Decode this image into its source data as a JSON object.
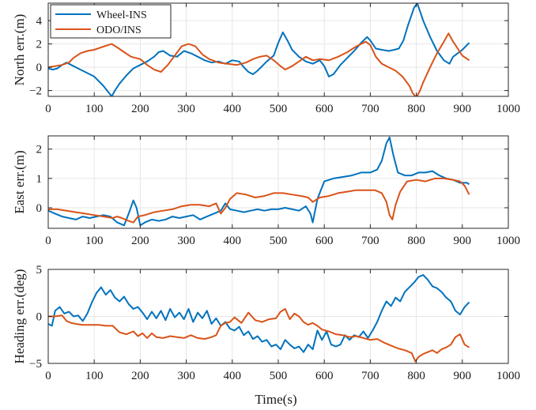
{
  "colors": {
    "wheel_ins": "#0072BD",
    "odo_ins": "#D95319",
    "grid": "#e6e6e6",
    "axis": "#262626"
  },
  "legend": {
    "placement": "top-left",
    "entries": [
      "Wheel-INS",
      "ODO/INS"
    ]
  },
  "xlabel": "Time(s)",
  "chart_data": [
    {
      "type": "line",
      "ylabel": "North err.(m)",
      "xlim": [
        0,
        1000
      ],
      "ylim": [
        -2.5,
        5.5
      ],
      "xticks": [
        0,
        100,
        200,
        300,
        400,
        500,
        600,
        700,
        800,
        900,
        1000
      ],
      "yticks": [
        -2,
        0,
        2,
        4
      ],
      "grid": true,
      "series": [
        {
          "name": "Wheel-INS",
          "x": [
            0,
            10,
            20,
            30,
            40,
            55,
            70,
            85,
            100,
            110,
            120,
            130,
            138,
            145,
            155,
            170,
            185,
            200,
            215,
            230,
            240,
            250,
            265,
            280,
            295,
            310,
            325,
            340,
            355,
            370,
            385,
            400,
            415,
            425,
            435,
            445,
            455,
            465,
            475,
            490,
            500,
            510,
            520,
            530,
            545,
            560,
            575,
            590,
            600,
            610,
            620,
            635,
            650,
            665,
            680,
            693,
            700,
            712,
            725,
            740,
            752,
            762,
            772,
            782,
            795,
            802,
            815,
            830,
            845,
            860,
            872,
            880,
            890,
            900,
            915
          ],
          "y": [
            -0.1,
            -0.2,
            -0.1,
            0.2,
            0.4,
            0.1,
            -0.2,
            -0.5,
            -0.8,
            -1.2,
            -1.6,
            -2.1,
            -2.5,
            -2.0,
            -1.4,
            -0.7,
            -0.1,
            0.2,
            0.5,
            0.9,
            1.3,
            1.4,
            1.0,
            0.9,
            1.4,
            1.2,
            0.9,
            0.6,
            0.4,
            0.5,
            0.3,
            0.6,
            0.5,
            0.0,
            -0.4,
            -0.6,
            -0.3,
            0.1,
            0.5,
            1.0,
            2.1,
            3.0,
            2.3,
            1.5,
            0.9,
            0.5,
            0.3,
            0.6,
            0.1,
            -0.8,
            -0.6,
            0.2,
            0.8,
            1.4,
            2.1,
            2.6,
            2.3,
            1.6,
            1.5,
            1.4,
            1.5,
            1.6,
            2.3,
            3.6,
            5.1,
            5.5,
            4.0,
            2.6,
            1.4,
            0.6,
            0.3,
            0.9,
            1.2,
            1.5,
            2.1
          ]
        },
        {
          "name": "ODO/INS",
          "x": [
            0,
            15,
            30,
            45,
            55,
            70,
            85,
            100,
            115,
            130,
            138,
            150,
            165,
            180,
            200,
            215,
            230,
            245,
            260,
            275,
            290,
            305,
            320,
            335,
            350,
            370,
            390,
            410,
            430,
            445,
            460,
            475,
            490,
            505,
            515,
            530,
            545,
            560,
            575,
            590,
            610,
            630,
            650,
            670,
            690,
            700,
            712,
            725,
            740,
            755,
            770,
            785,
            792,
            800,
            808,
            815,
            830,
            845,
            860,
            870,
            880,
            890,
            900,
            915
          ],
          "y": [
            0,
            0.1,
            0.2,
            0.4,
            0.8,
            1.2,
            1.4,
            1.5,
            1.7,
            1.9,
            2.0,
            1.7,
            1.3,
            0.9,
            0.7,
            0.2,
            -0.2,
            -0.4,
            0.2,
            1.0,
            1.8,
            2.0,
            1.8,
            1.1,
            0.7,
            0.4,
            0.3,
            0.2,
            0.4,
            0.7,
            0.9,
            1.0,
            0.6,
            0.1,
            -0.2,
            0.1,
            0.5,
            0.9,
            0.6,
            0.7,
            0.6,
            0.9,
            1.3,
            1.8,
            2.2,
            1.9,
            0.9,
            0.3,
            0.0,
            -0.3,
            -0.8,
            -1.6,
            -2.2,
            -2.6,
            -2.0,
            -1.3,
            0.0,
            1.2,
            2.2,
            2.9,
            2.2,
            1.6,
            1.0,
            0.6
          ]
        }
      ]
    },
    {
      "type": "line",
      "ylabel": "East err.(m)",
      "xlim": [
        0,
        1000
      ],
      "ylim": [
        -0.7,
        2.45
      ],
      "xticks": [
        0,
        100,
        200,
        300,
        400,
        500,
        600,
        700,
        800,
        900,
        1000
      ],
      "yticks": [
        0,
        1,
        2
      ],
      "grid": true,
      "series": [
        {
          "name": "Wheel-INS",
          "x": [
            0,
            15,
            30,
            45,
            60,
            75,
            90,
            105,
            120,
            135,
            150,
            165,
            175,
            185,
            192,
            200,
            210,
            225,
            240,
            255,
            270,
            285,
            300,
            315,
            330,
            345,
            360,
            375,
            385,
            395,
            410,
            425,
            440,
            455,
            470,
            485,
            500,
            515,
            530,
            545,
            560,
            570,
            575,
            585,
            600,
            620,
            640,
            660,
            680,
            700,
            715,
            725,
            735,
            742,
            750,
            760,
            775,
            790,
            805,
            820,
            835,
            850,
            865,
            880,
            895,
            910,
            915
          ],
          "y": [
            -0.1,
            -0.2,
            -0.3,
            -0.35,
            -0.4,
            -0.3,
            -0.35,
            -0.3,
            -0.25,
            -0.3,
            -0.5,
            -0.6,
            -0.2,
            0.25,
            0.0,
            -0.6,
            -0.5,
            -0.4,
            -0.45,
            -0.4,
            -0.3,
            -0.35,
            -0.3,
            -0.25,
            -0.4,
            -0.3,
            -0.2,
            -0.1,
            0.15,
            -0.05,
            -0.1,
            -0.15,
            -0.1,
            -0.05,
            -0.1,
            -0.05,
            -0.05,
            0.0,
            -0.05,
            -0.1,
            0.05,
            -0.2,
            -0.5,
            0.3,
            0.9,
            1.0,
            1.05,
            1.1,
            1.2,
            1.2,
            1.3,
            1.6,
            2.2,
            2.4,
            1.8,
            1.2,
            1.1,
            1.1,
            1.2,
            1.2,
            1.25,
            1.1,
            1.0,
            0.95,
            0.85,
            0.85,
            0.8
          ]
        },
        {
          "name": "ODO/INS",
          "x": [
            0,
            20,
            40,
            60,
            80,
            100,
            120,
            140,
            150,
            160,
            175,
            185,
            195,
            210,
            230,
            250,
            270,
            290,
            310,
            330,
            350,
            365,
            375,
            385,
            395,
            410,
            430,
            450,
            470,
            490,
            510,
            530,
            550,
            565,
            575,
            590,
            610,
            630,
            650,
            670,
            690,
            710,
            725,
            735,
            742,
            748,
            755,
            765,
            780,
            800,
            820,
            840,
            860,
            880,
            895,
            905,
            915
          ],
          "y": [
            -0.05,
            -0.05,
            -0.1,
            -0.15,
            -0.2,
            -0.25,
            -0.3,
            -0.35,
            -0.3,
            -0.35,
            -0.45,
            -0.5,
            -0.3,
            -0.25,
            -0.15,
            -0.1,
            -0.05,
            0.05,
            0.1,
            0.1,
            0.05,
            0.15,
            -0.2,
            0.0,
            0.3,
            0.5,
            0.45,
            0.35,
            0.4,
            0.5,
            0.5,
            0.45,
            0.4,
            0.35,
            0.2,
            0.35,
            0.4,
            0.5,
            0.55,
            0.6,
            0.6,
            0.6,
            0.5,
            0.2,
            -0.25,
            -0.4,
            0.1,
            0.55,
            0.9,
            0.95,
            0.9,
            1.0,
            1.0,
            0.95,
            0.9,
            0.75,
            0.45
          ]
        }
      ]
    },
    {
      "type": "line",
      "ylabel": "Heading err.(deg)",
      "xlim": [
        0,
        1000
      ],
      "ylim": [
        -5,
        5
      ],
      "xticks": [
        0,
        100,
        200,
        300,
        400,
        500,
        600,
        700,
        800,
        900,
        1000
      ],
      "yticks": [
        -5,
        0,
        5
      ],
      "grid": true,
      "series": [
        {
          "name": "Wheel-INS",
          "x": [
            0,
            8,
            15,
            25,
            35,
            45,
            55,
            65,
            75,
            85,
            95,
            105,
            115,
            125,
            135,
            145,
            155,
            165,
            175,
            185,
            195,
            205,
            215,
            225,
            235,
            245,
            255,
            265,
            275,
            285,
            295,
            305,
            315,
            325,
            335,
            345,
            355,
            365,
            375,
            385,
            395,
            405,
            415,
            425,
            435,
            445,
            455,
            465,
            475,
            485,
            495,
            505,
            515,
            525,
            535,
            545,
            555,
            565,
            575,
            585,
            595,
            605,
            615,
            625,
            635,
            645,
            655,
            665,
            675,
            685,
            695,
            705,
            715,
            725,
            735,
            745,
            755,
            765,
            775,
            785,
            795,
            805,
            815,
            825,
            835,
            845,
            855,
            865,
            875,
            885,
            895,
            905,
            915
          ],
          "y": [
            -0.8,
            -1.0,
            0.6,
            1.0,
            0.3,
            0.5,
            0.0,
            0.1,
            -0.5,
            0.3,
            1.5,
            2.5,
            3.1,
            2.3,
            2.8,
            2.0,
            1.6,
            2.1,
            1.3,
            0.8,
            1.0,
            0.4,
            -0.3,
            0.5,
            -0.2,
            0.6,
            -0.4,
            0.8,
            -0.1,
            0.4,
            -0.3,
            0.8,
            -0.6,
            0.4,
            -0.2,
            0.6,
            -0.8,
            -0.2,
            -1.0,
            -0.6,
            -1.3,
            -1.5,
            -1.1,
            -2.0,
            -1.6,
            -2.4,
            -2.1,
            -2.7,
            -2.5,
            -3.2,
            -3.0,
            -3.5,
            -2.5,
            -3.0,
            -3.4,
            -3.2,
            -3.8,
            -3.0,
            -3.5,
            -1.5,
            -2.5,
            -1.6,
            -3.0,
            -3.2,
            -3.0,
            -2.0,
            -2.5,
            -2.0,
            -2.2,
            -1.6,
            -2.3,
            -1.5,
            -0.6,
            0.6,
            1.6,
            1.1,
            2.0,
            1.6,
            2.6,
            3.1,
            3.6,
            4.2,
            4.4,
            3.9,
            3.2,
            3.0,
            2.6,
            2.0,
            1.6,
            0.6,
            0.2,
            1.0,
            1.5
          ]
        },
        {
          "name": "ODO/INS",
          "x": [
            0,
            15,
            30,
            40,
            50,
            60,
            75,
            90,
            110,
            125,
            140,
            155,
            170,
            185,
            195,
            205,
            215,
            225,
            235,
            250,
            265,
            280,
            295,
            310,
            325,
            340,
            355,
            365,
            375,
            385,
            395,
            405,
            420,
            435,
            450,
            465,
            480,
            495,
            505,
            515,
            525,
            535,
            545,
            555,
            565,
            575,
            585,
            595,
            610,
            625,
            640,
            655,
            670,
            685,
            700,
            715,
            730,
            745,
            760,
            775,
            790,
            798,
            805,
            815,
            825,
            835,
            845,
            855,
            865,
            875,
            885,
            895,
            905,
            915
          ],
          "y": [
            0,
            0,
            0.1,
            -0.5,
            -0.7,
            -0.8,
            -0.9,
            -0.9,
            -0.9,
            -1.0,
            -1.0,
            -1.7,
            -1.9,
            -1.6,
            -2.1,
            -1.8,
            -2.3,
            -1.8,
            -2.2,
            -2.3,
            -2.1,
            -2.2,
            -2.3,
            -2.0,
            -2.3,
            -2.4,
            -2.2,
            -2.0,
            -1.0,
            -0.7,
            -0.6,
            -0.1,
            -0.7,
            0.4,
            -0.4,
            -0.6,
            -0.3,
            -0.2,
            0.5,
            0.8,
            -0.3,
            0.3,
            0.0,
            -0.6,
            -0.9,
            -0.7,
            -1.0,
            -1.4,
            -1.6,
            -1.9,
            -2.0,
            -2.2,
            -2.1,
            -2.3,
            -2.5,
            -2.4,
            -2.8,
            -3.1,
            -3.4,
            -3.6,
            -3.9,
            -4.8,
            -4.3,
            -4.0,
            -3.8,
            -3.6,
            -3.9,
            -3.5,
            -3.3,
            -3.0,
            -2.2,
            -1.9,
            -3.0,
            -3.3
          ]
        }
      ]
    }
  ]
}
